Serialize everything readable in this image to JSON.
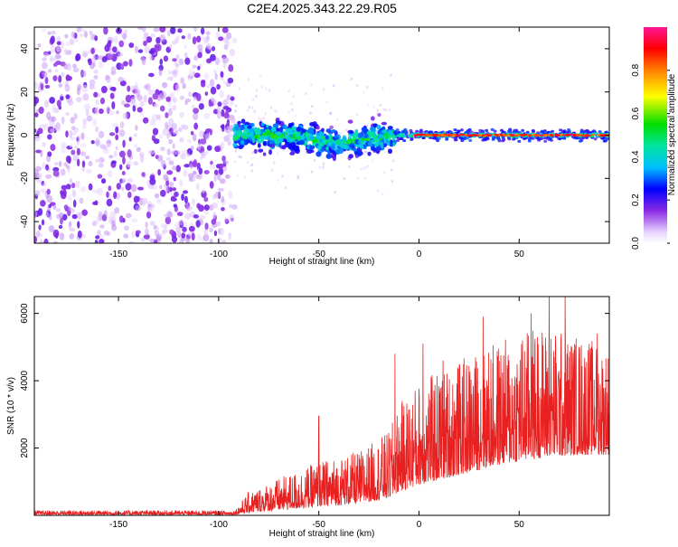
{
  "figure": {
    "title": "C2E4.2025.343.22.29.R05"
  },
  "chart_data": [
    {
      "type": "heatmap",
      "title": "C2E4.2025.343.22.29.R05",
      "xlabel": "Height of straight line (km)",
      "ylabel": "Frequency (Hz)",
      "xlim": [
        -192,
        95
      ],
      "ylim": [
        -50,
        50
      ],
      "x_ticks": [
        -150,
        -100,
        -50,
        0,
        50
      ],
      "y_ticks": [
        -40,
        -20,
        0,
        20,
        40
      ],
      "colorbar": {
        "label": "Normalized spectral amplitude",
        "range": [
          0,
          1
        ],
        "ticks": [
          0.0,
          0.2,
          0.4,
          0.6,
          0.8
        ],
        "stops": [
          {
            "v": 0.0,
            "color": "#ffffff"
          },
          {
            "v": 0.05,
            "color": "#e8d4ff"
          },
          {
            "v": 0.15,
            "color": "#8a2be2"
          },
          {
            "v": 0.25,
            "color": "#0000ff"
          },
          {
            "v": 0.35,
            "color": "#00bfff"
          },
          {
            "v": 0.45,
            "color": "#00e5a0"
          },
          {
            "v": 0.55,
            "color": "#00dd00"
          },
          {
            "v": 0.68,
            "color": "#ffff00"
          },
          {
            "v": 0.8,
            "color": "#ff8000"
          },
          {
            "v": 0.9,
            "color": "#ff0000"
          },
          {
            "v": 1.0,
            "color": "#ff1493"
          }
        ]
      },
      "regions": [
        {
          "name": "noise",
          "x_range": [
            -192,
            -92
          ],
          "freq_spread": 50,
          "amplitude": 0.15
        },
        {
          "name": "broad-signal",
          "x_range": [
            -92,
            -12
          ],
          "center_freq": 0,
          "freq_spread": [
            6,
            12
          ],
          "amplitude": 0.35
        },
        {
          "name": "narrow-line",
          "x_range": [
            -12,
            95
          ],
          "center_freq": 0,
          "freq_spread": 3,
          "amplitude": 0.85
        }
      ]
    },
    {
      "type": "line",
      "xlabel": "Height of straight line (km)",
      "ylabel": "SNR (10 * v/v)",
      "xlim": [
        -192,
        95
      ],
      "ylim": [
        0,
        6500
      ],
      "x_ticks": [
        -150,
        -100,
        -50,
        0,
        50
      ],
      "y_ticks": [
        2000,
        4000,
        6000
      ],
      "color": "#e82020",
      "envelope": [
        {
          "x": -192,
          "base": 20,
          "peak": 150
        },
        {
          "x": -92,
          "base": 20,
          "peak": 150
        },
        {
          "x": -85,
          "base": 80,
          "peak": 700
        },
        {
          "x": -70,
          "base": 150,
          "peak": 1100
        },
        {
          "x": -50,
          "base": 250,
          "peak": 1600
        },
        {
          "x": -30,
          "base": 350,
          "peak": 1900
        },
        {
          "x": -15,
          "base": 500,
          "peak": 2500
        },
        {
          "x": -10,
          "base": 700,
          "peak": 3300
        },
        {
          "x": 0,
          "base": 900,
          "peak": 4000
        },
        {
          "x": 20,
          "base": 1200,
          "peak": 4600
        },
        {
          "x": 40,
          "base": 1500,
          "peak": 5200
        },
        {
          "x": 60,
          "base": 1700,
          "peak": 5700
        },
        {
          "x": 80,
          "base": 1800,
          "peak": 5400
        },
        {
          "x": 95,
          "base": 1800,
          "peak": 5000
        }
      ],
      "notable_peaks": [
        {
          "x": -50,
          "y": 2950
        },
        {
          "x": -12,
          "y": 4800
        },
        {
          "x": 2,
          "y": 5100
        },
        {
          "x": 12,
          "y": 4600
        },
        {
          "x": 32,
          "y": 5900
        },
        {
          "x": 56,
          "y": 6000
        },
        {
          "x": 65,
          "y": 6550
        },
        {
          "x": 73,
          "y": 6500
        },
        {
          "x": 89,
          "y": 5400
        }
      ]
    }
  ]
}
